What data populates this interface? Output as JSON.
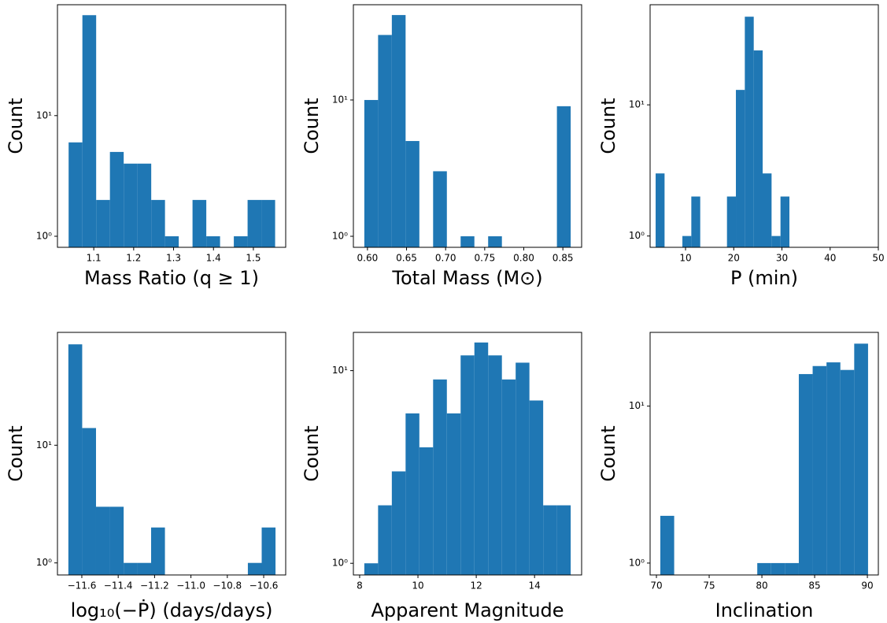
{
  "chart_data": [
    {
      "type": "histogram",
      "xlabel": "Mass Ratio (q ≥ 1)",
      "ylabel": "Count",
      "color": "#1f77b4",
      "log_y": true,
      "bins": [
        1.037,
        1.0715,
        1.106,
        1.1405,
        1.175,
        1.2095,
        1.244,
        1.2785,
        1.313,
        1.3475,
        1.382,
        1.4165,
        1.451,
        1.4855,
        1.52,
        1.5545
      ],
      "values": [
        6,
        68,
        2,
        5,
        4,
        4,
        2,
        1,
        0,
        2,
        1,
        0,
        1,
        2,
        2
      ],
      "xlim": [
        1.009,
        1.581
      ],
      "xticks": [
        1.1,
        1.2,
        1.3,
        1.4,
        1.5
      ],
      "ylim": [
        0.81,
        83
      ],
      "yticks": [
        {
          "value": 1,
          "label": "10⁰"
        },
        {
          "value": 10,
          "label": "10¹"
        }
      ]
    },
    {
      "type": "histogram",
      "xlabel": "Total Mass (M⊙)",
      "ylabel": "Count",
      "color": "#1f77b4",
      "log_y": true,
      "bins": [
        0.596,
        0.6136,
        0.6312,
        0.6488,
        0.6664,
        0.684,
        0.7016,
        0.7192,
        0.7368,
        0.7544,
        0.772,
        0.7896,
        0.8072,
        0.8248,
        0.8424,
        0.86
      ],
      "values": [
        10,
        30,
        42,
        5,
        0,
        3,
        0,
        1,
        0,
        1,
        0,
        0,
        0,
        0,
        9
      ],
      "xlim": [
        0.582,
        0.874
      ],
      "xticks": [
        {
          "value": 0.6,
          "label": "0.60"
        },
        0.65,
        {
          "value": 0.7,
          "label": "0.70"
        },
        0.75,
        {
          "value": 0.8,
          "label": "0.80"
        },
        0.85
      ],
      "ylim": [
        0.83,
        50
      ],
      "yticks": [
        {
          "value": 1,
          "label": "10⁰"
        },
        {
          "value": 10,
          "label": "10¹"
        }
      ]
    },
    {
      "type": "histogram",
      "xlabel": "P (min)",
      "ylabel": "Count",
      "color": "#1f77b4",
      "log_y": true,
      "bins": [
        3.8,
        5.65,
        7.5,
        9.35,
        11.2,
        13.05,
        14.9,
        16.75,
        18.6,
        20.45,
        22.3,
        24.15,
        26,
        27.85,
        29.7,
        31.55
      ],
      "values": [
        3,
        0,
        0,
        1,
        2,
        0,
        0,
        0,
        2,
        13,
        47,
        26,
        3,
        1,
        2
      ],
      "xlim": [
        2.65,
        50
      ],
      "xticks": [
        10,
        20,
        30,
        40,
        50
      ],
      "ylim": [
        0.82,
        58
      ],
      "yticks": [
        {
          "value": 1,
          "label": "10⁰"
        },
        {
          "value": 10,
          "label": "10¹"
        }
      ]
    },
    {
      "type": "histogram",
      "xlabel": "log₁₀(−Ṗ) (days/days)",
      "ylabel": "Count",
      "color": "#1f77b4",
      "log_y": true,
      "bins": [
        -11.674,
        -11.598,
        -11.522,
        -11.446,
        -11.37,
        -11.295,
        -11.219,
        -11.143,
        -11.067,
        -10.991,
        -10.915,
        -10.839,
        -10.763,
        -10.687,
        -10.611,
        -10.535
      ],
      "values": [
        72,
        14,
        3,
        3,
        1,
        1,
        2,
        0,
        0,
        0,
        0,
        0,
        0,
        1,
        2
      ],
      "xlim": [
        -11.734,
        -10.479
      ],
      "xticks": [
        {
          "value": -11.6,
          "label": "−11.6"
        },
        {
          "value": -11.4,
          "label": "−11.4"
        },
        {
          "value": -11.2,
          "label": "−11.2"
        },
        {
          "value": -11.0,
          "label": "−11.0"
        },
        {
          "value": -10.8,
          "label": "−10.8"
        },
        {
          "value": -10.6,
          "label": "−10.6"
        }
      ],
      "ylim": [
        0.79,
        91
      ],
      "yticks": [
        {
          "value": 1,
          "label": "10⁰"
        },
        {
          "value": 10,
          "label": "10¹"
        }
      ]
    },
    {
      "type": "histogram",
      "xlabel": "Apparent Magnitude",
      "ylabel": "Count",
      "color": "#1f77b4",
      "log_y": true,
      "bins": [
        8.16,
        8.632,
        9.104,
        9.576,
        10.048,
        10.52,
        10.992,
        11.464,
        11.936,
        12.408,
        12.88,
        13.352,
        13.824,
        14.296,
        14.768,
        15.24
      ],
      "values": [
        1,
        2,
        3,
        6,
        4,
        9,
        6,
        12,
        14,
        12,
        9,
        11,
        7,
        2,
        2
      ],
      "xlim": [
        7.785,
        15.615
      ],
      "xticks": [
        8,
        10,
        12,
        14
      ],
      "ylim": [
        0.87,
        15.8
      ],
      "yticks": [
        {
          "value": 1,
          "label": "10⁰"
        },
        {
          "value": 10,
          "label": "10¹"
        }
      ]
    },
    {
      "type": "histogram",
      "xlabel": "Inclination",
      "ylabel": "Count",
      "color": "#1f77b4",
      "log_y": true,
      "bins": [
        70.37,
        71.683,
        72.996,
        74.309,
        75.622,
        76.935,
        78.248,
        79.561,
        80.874,
        82.187,
        83.5,
        84.813,
        86.126,
        87.439,
        88.752,
        90.065
      ],
      "values": [
        2,
        0,
        0,
        0,
        0,
        0,
        0,
        1,
        1,
        1,
        16,
        18,
        19,
        17,
        25
      ],
      "xlim": [
        69.4,
        91.04
      ],
      "xticks": [
        70,
        75,
        80,
        85,
        90
      ],
      "ylim": [
        0.84,
        29.5
      ],
      "yticks": [
        {
          "value": 1,
          "label": "10⁰"
        },
        {
          "value": 10,
          "label": "10¹"
        }
      ]
    }
  ]
}
